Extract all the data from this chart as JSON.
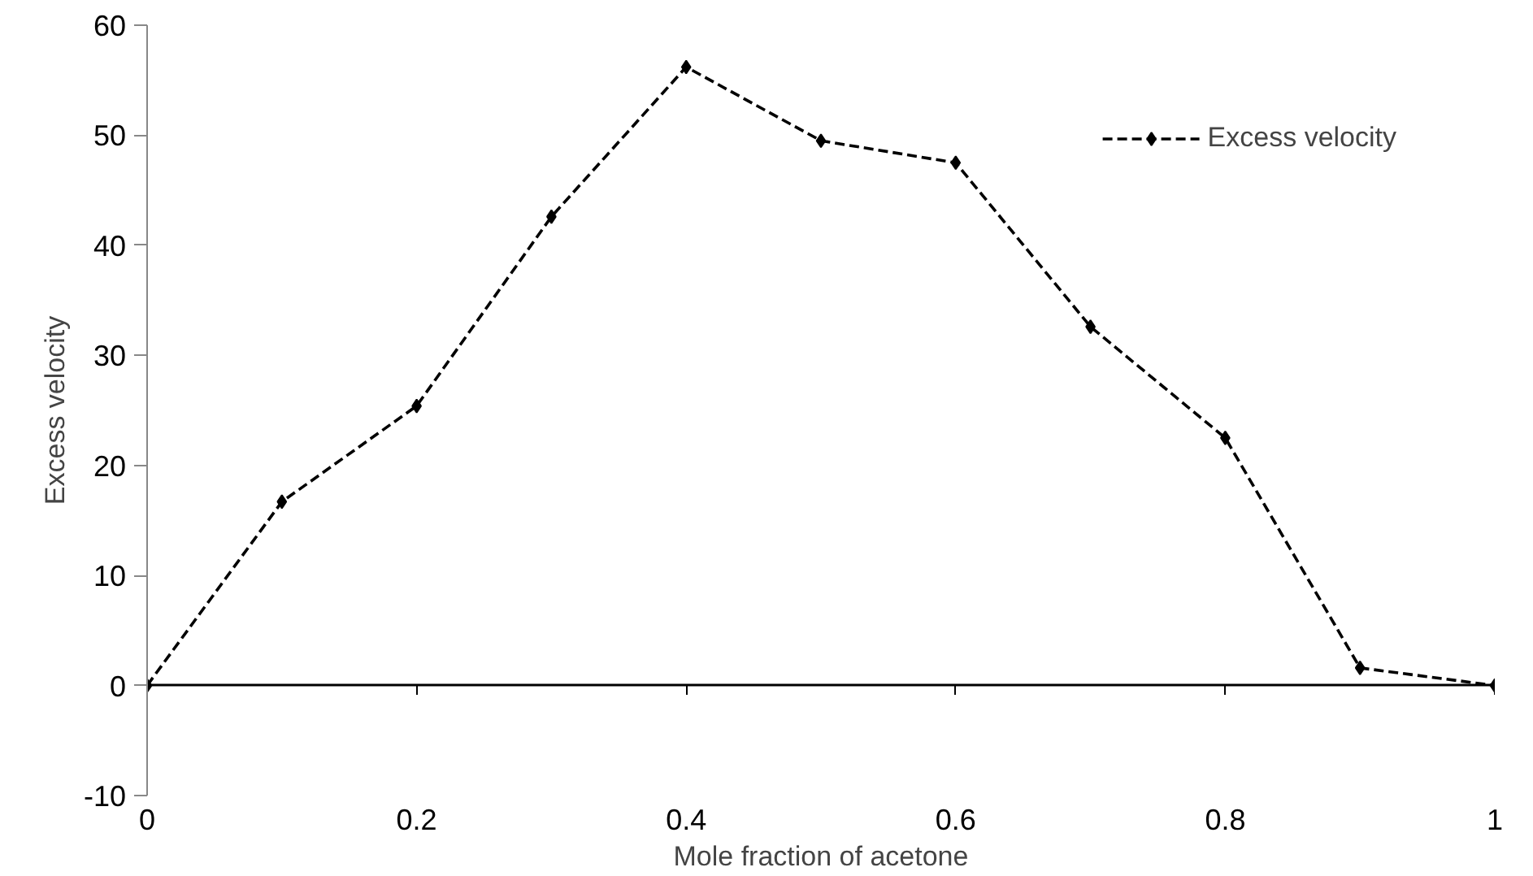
{
  "chart_data": {
    "type": "line",
    "xlabel": "Mole fraction of acetone",
    "ylabel": "Excess velocity",
    "x": [
      0,
      0.1,
      0.2,
      0.3,
      0.4,
      0.5,
      0.6,
      0.7,
      0.8,
      0.9,
      1
    ],
    "series": [
      {
        "name": "Excess velocity",
        "color": "#000000",
        "values": [
          0,
          16.7,
          25.4,
          42.6,
          56.2,
          49.5,
          47.5,
          32.6,
          22.5,
          1.6,
          0
        ]
      }
    ],
    "xlim": [
      0,
      1
    ],
    "ylim": [
      -10,
      60
    ],
    "xticks": [
      0,
      0.2,
      0.4,
      0.6,
      0.8,
      1
    ],
    "yticks": [
      -10,
      0,
      10,
      20,
      30,
      40,
      50,
      60
    ],
    "legend": "top right",
    "marker": "diamond",
    "line_style": "dashed"
  }
}
